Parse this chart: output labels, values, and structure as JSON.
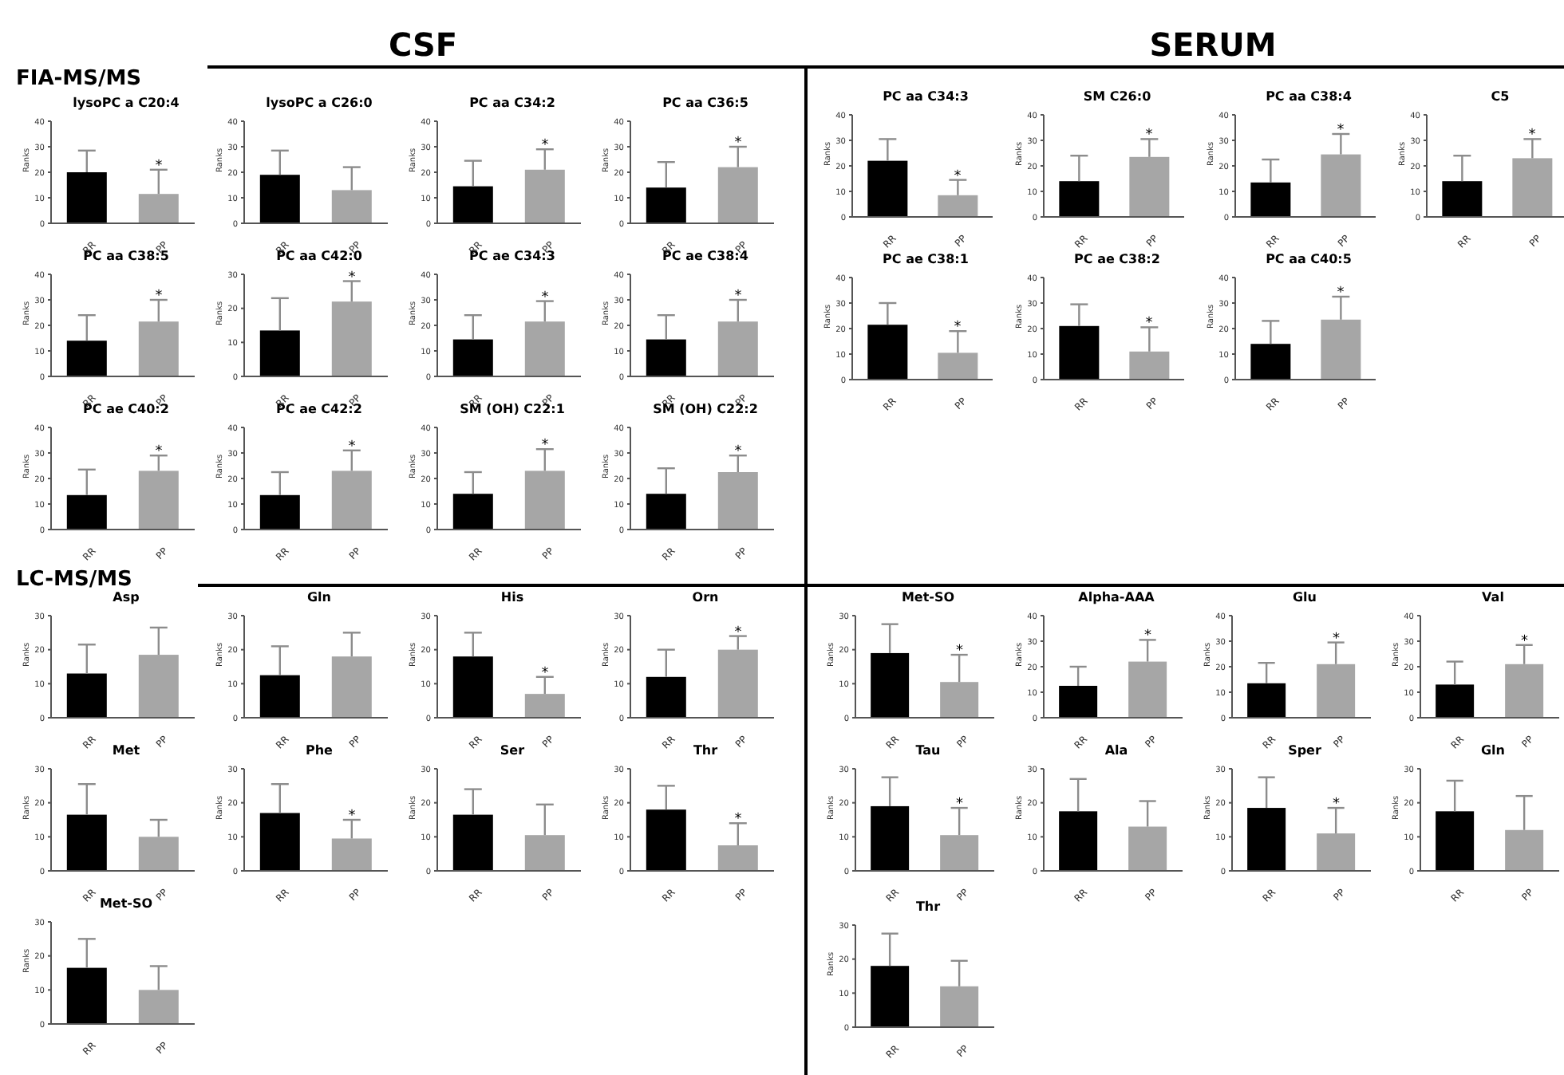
{
  "chart_data": [
    {
      "type": "bar",
      "title": "lysoPC a C20:4",
      "ylabel": "Ranks",
      "categories": [
        "RR",
        "PP"
      ],
      "values": [
        20,
        11.5
      ],
      "errors": [
        [
          20,
          28.5
        ],
        [
          11.5,
          21
        ]
      ],
      "colors": [
        "#000000",
        "#a6a6a6"
      ],
      "ylim": [
        0,
        40
      ],
      "yticks": [
        0,
        10,
        20,
        30,
        40
      ],
      "annotations": [
        "CSF",
        "FIA-MS/MS",
        {
          "text": "*",
          "x": "PP",
          "y": 21
        }
      ]
    },
    {
      "type": "bar",
      "title": "lysoPC a C26:0",
      "ylabel": "Ranks",
      "categories": [
        "RR",
        "PP"
      ],
      "values": [
        19,
        13
      ],
      "errors": [
        [
          19,
          28.5
        ],
        [
          13,
          22
        ]
      ],
      "colors": [
        "#000000",
        "#a6a6a6"
      ],
      "ylim": [
        0,
        40
      ],
      "yticks": [
        0,
        10,
        20,
        30,
        40
      ]
    },
    {
      "type": "bar",
      "title": "PC aa C34:2",
      "ylabel": "Ranks",
      "categories": [
        "RR",
        "PP"
      ],
      "values": [
        14.5,
        21
      ],
      "errors": [
        [
          14.5,
          24.5
        ],
        [
          21,
          29
        ]
      ],
      "colors": [
        "#000000",
        "#a6a6a6"
      ],
      "ylim": [
        0,
        40
      ],
      "yticks": [
        0,
        10,
        20,
        30,
        40
      ],
      "annotations": [
        {
          "text": "*",
          "x": "PP",
          "y": 29
        }
      ]
    },
    {
      "type": "bar",
      "title": "PC aa C36:5",
      "ylabel": "Ranks",
      "categories": [
        "RR",
        "PP"
      ],
      "values": [
        14,
        22
      ],
      "errors": [
        [
          14,
          24
        ],
        [
          22,
          30
        ]
      ],
      "colors": [
        "#000000",
        "#a6a6a6"
      ],
      "ylim": [
        0,
        40
      ],
      "yticks": [
        0,
        10,
        20,
        30,
        40
      ],
      "annotations": [
        {
          "text": "*",
          "x": "PP",
          "y": 30
        }
      ]
    },
    {
      "type": "bar",
      "title": "PC aa C38:5",
      "ylabel": "Ranks",
      "categories": [
        "RR",
        "PP"
      ],
      "values": [
        14,
        21.5
      ],
      "errors": [
        [
          14,
          24
        ],
        [
          21.5,
          30
        ]
      ],
      "colors": [
        "#000000",
        "#a6a6a6"
      ],
      "ylim": [
        0,
        40
      ],
      "yticks": [
        0,
        10,
        20,
        30,
        40
      ],
      "annotations": [
        {
          "text": "*",
          "x": "PP",
          "y": 30
        }
      ]
    },
    {
      "type": "bar",
      "title": "PC aa C42:0",
      "ylabel": "Ranks",
      "categories": [
        "RR",
        "PP"
      ],
      "values": [
        13.5,
        22
      ],
      "errors": [
        [
          13.5,
          23
        ],
        [
          22,
          28
        ]
      ],
      "colors": [
        "#000000",
        "#a6a6a6"
      ],
      "ylim": [
        0,
        30
      ],
      "yticks": [
        0,
        10,
        20,
        30
      ],
      "annotations": [
        {
          "text": "*",
          "x": "PP",
          "y": 28
        }
      ]
    },
    {
      "type": "bar",
      "title": "PC ae C34:3",
      "ylabel": "Ranks",
      "categories": [
        "RR",
        "PP"
      ],
      "values": [
        14.5,
        21.5
      ],
      "errors": [
        [
          14.5,
          24
        ],
        [
          21.5,
          29.5
        ]
      ],
      "colors": [
        "#000000",
        "#a6a6a6"
      ],
      "ylim": [
        0,
        40
      ],
      "yticks": [
        0,
        10,
        20,
        30,
        40
      ],
      "annotations": [
        {
          "text": "*",
          "x": "PP",
          "y": 29.5
        }
      ]
    },
    {
      "type": "bar",
      "title": "PC ae C38:4",
      "ylabel": "Ranks",
      "categories": [
        "RR",
        "PP"
      ],
      "values": [
        14.5,
        21.5
      ],
      "errors": [
        [
          14.5,
          24
        ],
        [
          21.5,
          30
        ]
      ],
      "colors": [
        "#000000",
        "#a6a6a6"
      ],
      "ylim": [
        0,
        40
      ],
      "yticks": [
        0,
        10,
        20,
        30,
        40
      ],
      "annotations": [
        {
          "text": "*",
          "x": "PP",
          "y": 30
        }
      ]
    },
    {
      "type": "bar",
      "title": "PC ae C40:2",
      "ylabel": "Ranks",
      "categories": [
        "RR",
        "PP"
      ],
      "values": [
        13.5,
        23
      ],
      "errors": [
        [
          13.5,
          23.5
        ],
        [
          23,
          29
        ]
      ],
      "colors": [
        "#000000",
        "#a6a6a6"
      ],
      "ylim": [
        0,
        40
      ],
      "yticks": [
        0,
        10,
        20,
        30,
        40
      ],
      "annotations": [
        {
          "text": "*",
          "x": "PP",
          "y": 29
        }
      ]
    },
    {
      "type": "bar",
      "title": "PC ae C42:2",
      "ylabel": "Ranks",
      "categories": [
        "RR",
        "PP"
      ],
      "values": [
        13.5,
        23
      ],
      "errors": [
        [
          13.5,
          22.5
        ],
        [
          23,
          31
        ]
      ],
      "colors": [
        "#000000",
        "#a6a6a6"
      ],
      "ylim": [
        0,
        40
      ],
      "yticks": [
        0,
        10,
        20,
        30,
        40
      ],
      "annotations": [
        {
          "text": "*",
          "x": "PP",
          "y": 31
        }
      ]
    },
    {
      "type": "bar",
      "title": "SM (OH) C22:1",
      "ylabel": "Ranks",
      "categories": [
        "RR",
        "PP"
      ],
      "values": [
        14,
        23
      ],
      "errors": [
        [
          14,
          22.5
        ],
        [
          23,
          31.5
        ]
      ],
      "colors": [
        "#000000",
        "#a6a6a6"
      ],
      "ylim": [
        0,
        40
      ],
      "yticks": [
        0,
        10,
        20,
        30,
        40
      ],
      "annotations": [
        {
          "text": "*",
          "x": "PP",
          "y": 31.5
        }
      ]
    },
    {
      "type": "bar",
      "title": "SM (OH) C22:2",
      "ylabel": "Ranks",
      "categories": [
        "RR",
        "PP"
      ],
      "values": [
        14,
        22.5
      ],
      "errors": [
        [
          14,
          24
        ],
        [
          22.5,
          29
        ]
      ],
      "colors": [
        "#000000",
        "#a6a6a6"
      ],
      "ylim": [
        0,
        40
      ],
      "yticks": [
        0,
        10,
        20,
        30,
        40
      ],
      "annotations": [
        {
          "text": "*",
          "x": "PP",
          "y": 29
        }
      ]
    },
    {
      "type": "bar",
      "title": "PC aa C34:3",
      "ylabel": "Ranks",
      "categories": [
        "RR",
        "PP"
      ],
      "values": [
        22,
        8.5
      ],
      "errors": [
        [
          22,
          30.5
        ],
        [
          8.5,
          14.5
        ]
      ],
      "colors": [
        "#000000",
        "#a6a6a6"
      ],
      "ylim": [
        0,
        40
      ],
      "yticks": [
        0,
        10,
        20,
        30,
        40
      ],
      "annotations": [
        "SERUM",
        {
          "text": "*",
          "x": "PP",
          "y": 14.5
        }
      ]
    },
    {
      "type": "bar",
      "title": "SM C26:0",
      "ylabel": "Ranks",
      "categories": [
        "RR",
        "PP"
      ],
      "values": [
        14,
        23.5
      ],
      "errors": [
        [
          14,
          24
        ],
        [
          23.5,
          30.5
        ]
      ],
      "colors": [
        "#000000",
        "#a6a6a6"
      ],
      "ylim": [
        0,
        40
      ],
      "yticks": [
        0,
        10,
        20,
        30,
        40
      ],
      "annotations": [
        {
          "text": "*",
          "x": "PP",
          "y": 30.5
        }
      ]
    },
    {
      "type": "bar",
      "title": "PC aa C38:4",
      "ylabel": "Ranks",
      "categories": [
        "RR",
        "PP"
      ],
      "values": [
        13.5,
        24.5
      ],
      "errors": [
        [
          13.5,
          22.5
        ],
        [
          24.5,
          32.5
        ]
      ],
      "colors": [
        "#000000",
        "#a6a6a6"
      ],
      "ylim": [
        0,
        40
      ],
      "yticks": [
        0,
        10,
        20,
        30,
        40
      ],
      "annotations": [
        {
          "text": "*",
          "x": "PP",
          "y": 32.5
        }
      ]
    },
    {
      "type": "bar",
      "title": "C5",
      "ylabel": "Ranks",
      "categories": [
        "RR",
        "PP"
      ],
      "values": [
        14,
        23
      ],
      "errors": [
        [
          14,
          24
        ],
        [
          23,
          30.5
        ]
      ],
      "colors": [
        "#000000",
        "#a6a6a6"
      ],
      "ylim": [
        0,
        40
      ],
      "yticks": [
        0,
        10,
        20,
        30,
        40
      ],
      "annotations": [
        {
          "text": "*",
          "x": "PP",
          "y": 30.5
        }
      ]
    },
    {
      "type": "bar",
      "title": "PC ae C38:1",
      "ylabel": "Ranks",
      "categories": [
        "RR",
        "PP"
      ],
      "values": [
        21.5,
        10.5
      ],
      "errors": [
        [
          21.5,
          30
        ],
        [
          10.5,
          19
        ]
      ],
      "colors": [
        "#000000",
        "#a6a6a6"
      ],
      "ylim": [
        0,
        40
      ],
      "yticks": [
        0,
        10,
        20,
        30,
        40
      ],
      "annotations": [
        {
          "text": "*",
          "x": "PP",
          "y": 19
        }
      ]
    },
    {
      "type": "bar",
      "title": "PC ae C38:2",
      "ylabel": "Ranks",
      "categories": [
        "RR",
        "PP"
      ],
      "values": [
        21,
        11
      ],
      "errors": [
        [
          21,
          29.5
        ],
        [
          11,
          20.5
        ]
      ],
      "colors": [
        "#000000",
        "#a6a6a6"
      ],
      "ylim": [
        0,
        40
      ],
      "yticks": [
        0,
        10,
        20,
        30,
        40
      ],
      "annotations": [
        {
          "text": "*",
          "x": "PP",
          "y": 20.5
        }
      ]
    },
    {
      "type": "bar",
      "title": "PC aa C40:5",
      "ylabel": "Ranks",
      "categories": [
        "RR",
        "PP"
      ],
      "values": [
        14,
        23.5
      ],
      "errors": [
        [
          14,
          23
        ],
        [
          23.5,
          32.5
        ]
      ],
      "colors": [
        "#000000",
        "#a6a6a6"
      ],
      "ylim": [
        0,
        40
      ],
      "yticks": [
        0,
        10,
        20,
        30,
        40
      ],
      "annotations": [
        {
          "text": "*",
          "x": "PP",
          "y": 32.5
        }
      ]
    },
    {
      "type": "bar",
      "title": "Asp",
      "ylabel": "Ranks",
      "categories": [
        "RR",
        "PP"
      ],
      "values": [
        13,
        18.5
      ],
      "errors": [
        [
          13,
          21.5
        ],
        [
          18.5,
          26.5
        ]
      ],
      "colors": [
        "#000000",
        "#a6a6a6"
      ],
      "ylim": [
        0,
        30
      ],
      "yticks": [
        0,
        10,
        20,
        30
      ],
      "annotations": [
        "LC-MS/MS"
      ]
    },
    {
      "type": "bar",
      "title": "Gln",
      "ylabel": "Ranks",
      "categories": [
        "RR",
        "PP"
      ],
      "values": [
        12.5,
        18
      ],
      "errors": [
        [
          12.5,
          21
        ],
        [
          18,
          25
        ]
      ],
      "colors": [
        "#000000",
        "#a6a6a6"
      ],
      "ylim": [
        0,
        30
      ],
      "yticks": [
        0,
        10,
        20,
        30
      ]
    },
    {
      "type": "bar",
      "title": "His",
      "ylabel": "Ranks",
      "categories": [
        "RR",
        "PP"
      ],
      "values": [
        18,
        7
      ],
      "errors": [
        [
          18,
          25
        ],
        [
          7,
          12
        ]
      ],
      "colors": [
        "#000000",
        "#a6a6a6"
      ],
      "ylim": [
        0,
        30
      ],
      "yticks": [
        0,
        10,
        20,
        30
      ],
      "annotations": [
        {
          "text": "*",
          "x": "PP",
          "y": 12
        }
      ]
    },
    {
      "type": "bar",
      "title": "Orn",
      "ylabel": "Ranks",
      "categories": [
        "RR",
        "PP"
      ],
      "values": [
        12,
        20
      ],
      "errors": [
        [
          12,
          20
        ],
        [
          20,
          24
        ]
      ],
      "colors": [
        "#000000",
        "#a6a6a6"
      ],
      "ylim": [
        0,
        30
      ],
      "yticks": [
        0,
        10,
        20,
        30
      ],
      "annotations": [
        {
          "text": "*",
          "x": "PP",
          "y": 24
        }
      ]
    },
    {
      "type": "bar",
      "title": "Met",
      "ylabel": "Ranks",
      "categories": [
        "RR",
        "PP"
      ],
      "values": [
        16.5,
        10
      ],
      "errors": [
        [
          16.5,
          25.5
        ],
        [
          10,
          15
        ]
      ],
      "colors": [
        "#000000",
        "#a6a6a6"
      ],
      "ylim": [
        0,
        30
      ],
      "yticks": [
        0,
        10,
        20,
        30
      ]
    },
    {
      "type": "bar",
      "title": "Phe",
      "ylabel": "Ranks",
      "categories": [
        "RR",
        "PP"
      ],
      "values": [
        17,
        9.5
      ],
      "errors": [
        [
          17,
          25.5
        ],
        [
          9.5,
          15
        ]
      ],
      "colors": [
        "#000000",
        "#a6a6a6"
      ],
      "ylim": [
        0,
        30
      ],
      "yticks": [
        0,
        10,
        20,
        30
      ],
      "annotations": [
        {
          "text": "*",
          "x": "PP",
          "y": 15
        }
      ]
    },
    {
      "type": "bar",
      "title": "Ser",
      "ylabel": "Ranks",
      "categories": [
        "RR",
        "PP"
      ],
      "values": [
        16.5,
        10.5
      ],
      "errors": [
        [
          16.5,
          24
        ],
        [
          10.5,
          19.5
        ]
      ],
      "colors": [
        "#000000",
        "#a6a6a6"
      ],
      "ylim": [
        0,
        30
      ],
      "yticks": [
        0,
        10,
        20,
        30
      ]
    },
    {
      "type": "bar",
      "title": "Thr",
      "ylabel": "Ranks",
      "categories": [
        "RR",
        "PP"
      ],
      "values": [
        18,
        7.5
      ],
      "errors": [
        [
          18,
          25
        ],
        [
          7.5,
          14
        ]
      ],
      "colors": [
        "#000000",
        "#a6a6a6"
      ],
      "ylim": [
        0,
        30
      ],
      "yticks": [
        0,
        10,
        20,
        30
      ],
      "annotations": [
        {
          "text": "*",
          "x": "PP",
          "y": 14
        }
      ]
    },
    {
      "type": "bar",
      "title": "Met-SO",
      "ylabel": "Ranks",
      "categories": [
        "RR",
        "PP"
      ],
      "values": [
        16.5,
        10
      ],
      "errors": [
        [
          16.5,
          25
        ],
        [
          10,
          17
        ]
      ],
      "colors": [
        "#000000",
        "#a6a6a6"
      ],
      "ylim": [
        0,
        30
      ],
      "yticks": [
        0,
        10,
        20,
        30
      ]
    },
    {
      "type": "bar",
      "title": "Met-SO",
      "ylabel": "Ranks",
      "categories": [
        "RR",
        "PP"
      ],
      "values": [
        19,
        10.5
      ],
      "errors": [
        [
          19,
          27.5
        ],
        [
          10.5,
          18.5
        ]
      ],
      "colors": [
        "#000000",
        "#a6a6a6"
      ],
      "ylim": [
        0,
        30
      ],
      "yticks": [
        0,
        10,
        20,
        30
      ],
      "annotations": [
        {
          "text": "*",
          "x": "PP",
          "y": 18.5
        }
      ]
    },
    {
      "type": "bar",
      "title": "Alpha-AAA",
      "ylabel": "Ranks",
      "categories": [
        "RR",
        "PP"
      ],
      "values": [
        12.5,
        22
      ],
      "errors": [
        [
          12.5,
          20
        ],
        [
          22,
          30.5
        ]
      ],
      "colors": [
        "#000000",
        "#a6a6a6"
      ],
      "ylim": [
        0,
        40
      ],
      "yticks": [
        0,
        10,
        20,
        30,
        40
      ],
      "annotations": [
        {
          "text": "*",
          "x": "PP",
          "y": 30.5
        }
      ]
    },
    {
      "type": "bar",
      "title": "Glu",
      "ylabel": "Ranks",
      "categories": [
        "RR",
        "PP"
      ],
      "values": [
        13.5,
        21
      ],
      "errors": [
        [
          13.5,
          21.5
        ],
        [
          21,
          29.5
        ]
      ],
      "colors": [
        "#000000",
        "#a6a6a6"
      ],
      "ylim": [
        0,
        40
      ],
      "yticks": [
        0,
        10,
        20,
        30,
        40
      ],
      "annotations": [
        {
          "text": "*",
          "x": "PP",
          "y": 29.5
        }
      ]
    },
    {
      "type": "bar",
      "title": "Val",
      "ylabel": "Ranks",
      "categories": [
        "RR",
        "PP"
      ],
      "values": [
        13,
        21
      ],
      "errors": [
        [
          13,
          22
        ],
        [
          21,
          28.5
        ]
      ],
      "colors": [
        "#000000",
        "#a6a6a6"
      ],
      "ylim": [
        0,
        40
      ],
      "yticks": [
        0,
        10,
        20,
        30,
        40
      ],
      "annotations": [
        {
          "text": "*",
          "x": "PP",
          "y": 28.5
        }
      ]
    },
    {
      "type": "bar",
      "title": "Tau",
      "ylabel": "Ranks",
      "categories": [
        "RR",
        "PP"
      ],
      "values": [
        19,
        10.5
      ],
      "errors": [
        [
          19,
          27.5
        ],
        [
          10.5,
          18.5
        ]
      ],
      "colors": [
        "#000000",
        "#a6a6a6"
      ],
      "ylim": [
        0,
        30
      ],
      "yticks": [
        0,
        10,
        20,
        30
      ],
      "annotations": [
        {
          "text": "*",
          "x": "PP",
          "y": 18.5
        }
      ]
    },
    {
      "type": "bar",
      "title": "Ala",
      "ylabel": "Ranks",
      "categories": [
        "RR",
        "PP"
      ],
      "values": [
        17.5,
        13
      ],
      "errors": [
        [
          17.5,
          27
        ],
        [
          13,
          20.5
        ]
      ],
      "colors": [
        "#000000",
        "#a6a6a6"
      ],
      "ylim": [
        0,
        30
      ],
      "yticks": [
        0,
        10,
        20,
        30
      ]
    },
    {
      "type": "bar",
      "title": "Sper",
      "ylabel": "Ranks",
      "categories": [
        "RR",
        "PP"
      ],
      "values": [
        18.5,
        11
      ],
      "errors": [
        [
          18.5,
          27.5
        ],
        [
          11,
          18.5
        ]
      ],
      "colors": [
        "#000000",
        "#a6a6a6"
      ],
      "ylim": [
        0,
        30
      ],
      "yticks": [
        0,
        10,
        20,
        30
      ],
      "annotations": [
        {
          "text": "*",
          "x": "PP",
          "y": 18.5
        }
      ]
    },
    {
      "type": "bar",
      "title": "Gln",
      "ylabel": "Ranks",
      "categories": [
        "RR",
        "PP"
      ],
      "values": [
        17.5,
        12
      ],
      "errors": [
        [
          17.5,
          26.5
        ],
        [
          12,
          22
        ]
      ],
      "colors": [
        "#000000",
        "#a6a6a6"
      ],
      "ylim": [
        0,
        30
      ],
      "yticks": [
        0,
        10,
        20,
        30
      ]
    },
    {
      "type": "bar",
      "title": "Thr",
      "ylabel": "Ranks",
      "categories": [
        "RR",
        "PP"
      ],
      "values": [
        18,
        12
      ],
      "errors": [
        [
          18,
          27.5
        ],
        [
          12,
          19.5
        ]
      ],
      "colors": [
        "#000000",
        "#a6a6a6"
      ],
      "ylim": [
        0,
        30
      ],
      "yticks": [
        0,
        10,
        20,
        30
      ]
    }
  ]
}
